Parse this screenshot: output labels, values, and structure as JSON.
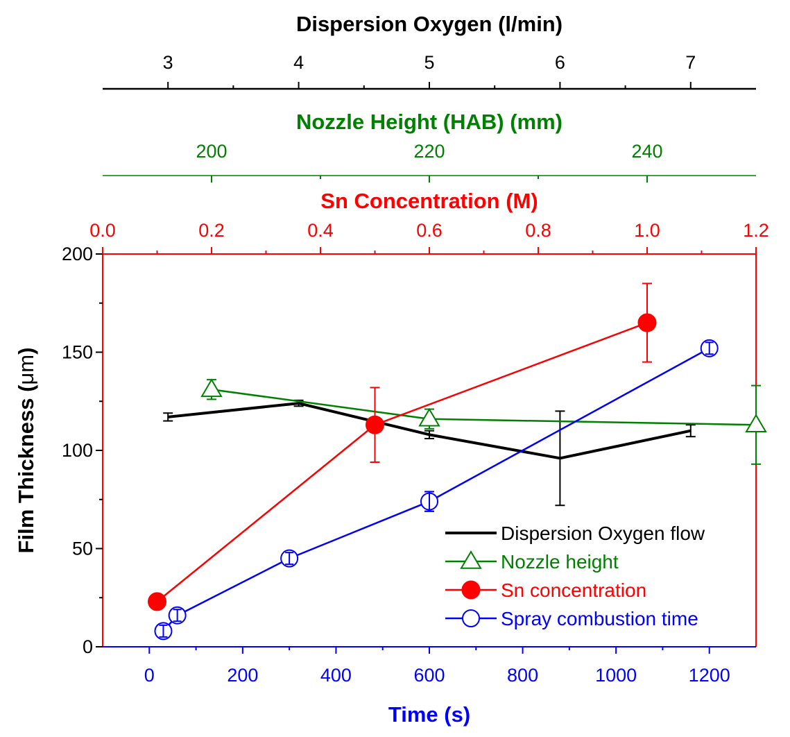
{
  "chart_data": {
    "type": "line",
    "colors": {
      "black": "#000000",
      "green": "#008000",
      "red": "#ff0000",
      "blue": "#0000ff"
    },
    "ylabel_prefix": "Film Thickness (",
    "ylabel_unit": "μm",
    "ylabel_suffix": ")",
    "ylim": [
      0,
      200
    ],
    "yticks": [
      "0",
      "50",
      "100",
      "150",
      "200"
    ],
    "axes": {
      "time": {
        "label": "Time (s)",
        "range": [
          -100,
          1300
        ],
        "ticks": [
          "0",
          "200",
          "400",
          "600",
          "800",
          "1000",
          "1200"
        ]
      },
      "sn": {
        "label": "Sn Concentration (M)",
        "range": [
          0.0,
          1.2
        ],
        "ticks": [
          "0.0",
          "0.2",
          "0.4",
          "0.6",
          "0.8",
          "1.0",
          "1.2"
        ]
      },
      "nozzle": {
        "label": "Nozzle Height (HAB) (mm)",
        "range": [
          190,
          250
        ],
        "ticks": [
          "200",
          "220",
          "240"
        ]
      },
      "oxygen": {
        "label": "Dispersion Oxygen (l/min)",
        "range": [
          2.5,
          7.5
        ],
        "ticks": [
          "3",
          "4",
          "5",
          "6",
          "7"
        ]
      }
    },
    "series": [
      {
        "name": "Dispersion Oxygen flow",
        "axis": "oxygen",
        "color": "black",
        "marker": "none",
        "x": [
          3,
          4,
          5,
          6,
          7
        ],
        "y": [
          117,
          124,
          108,
          96,
          110
        ],
        "err": [
          2,
          1.5,
          2,
          24,
          3
        ]
      },
      {
        "name": "Nozzle height",
        "axis": "nozzle",
        "color": "green",
        "marker": "triangle",
        "x": [
          200,
          220,
          250
        ],
        "y": [
          131,
          116,
          113
        ],
        "err": [
          5,
          5,
          20
        ]
      },
      {
        "name": "Sn concentration",
        "axis": "sn",
        "color": "red",
        "marker": "filled-circle",
        "x": [
          0.1,
          0.5,
          1.0
        ],
        "y": [
          23,
          113,
          165
        ],
        "err": [
          0,
          19,
          20
        ]
      },
      {
        "name": "Spray combustion time",
        "axis": "time",
        "color": "blue",
        "marker": "open-circle",
        "x": [
          30,
          60,
          300,
          600,
          1200
        ],
        "y": [
          8,
          16,
          45,
          74,
          152
        ],
        "err": [
          3,
          3,
          3,
          5,
          3
        ]
      }
    ],
    "legend_position": "bottom-right"
  }
}
